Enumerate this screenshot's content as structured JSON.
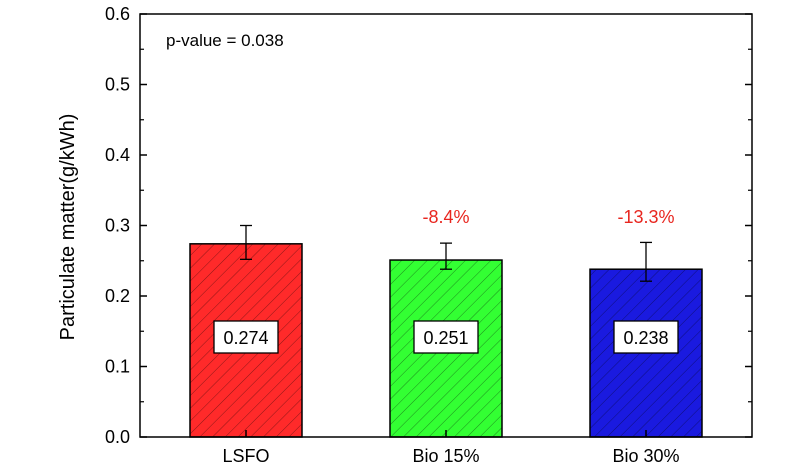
{
  "chart_data": {
    "type": "bar",
    "categories": [
      "LSFO",
      "Bio 15%",
      "Bio 30%"
    ],
    "values": [
      0.274,
      0.251,
      0.238
    ],
    "value_labels": [
      "0.274",
      "0.251",
      "0.238"
    ],
    "error_low": [
      0.252,
      0.238,
      0.221
    ],
    "error_high": [
      0.3,
      0.275,
      0.276
    ],
    "change_labels": [
      "",
      "-8.4%",
      "-13.3%"
    ],
    "bar_colors": [
      "#ff2a2a",
      "#33ff33",
      "#1a1adf"
    ],
    "change_color": "#e8261f",
    "title": "",
    "xlabel": "",
    "ylabel": "Particulate matter(g/kWh)",
    "ylim": [
      0.0,
      0.6
    ],
    "yticks": [
      "0.0",
      "0.1",
      "0.2",
      "0.3",
      "0.4",
      "0.5",
      "0.6"
    ],
    "annotation": "p-value = 0.038",
    "grid": false,
    "hatch": "diagonal"
  }
}
